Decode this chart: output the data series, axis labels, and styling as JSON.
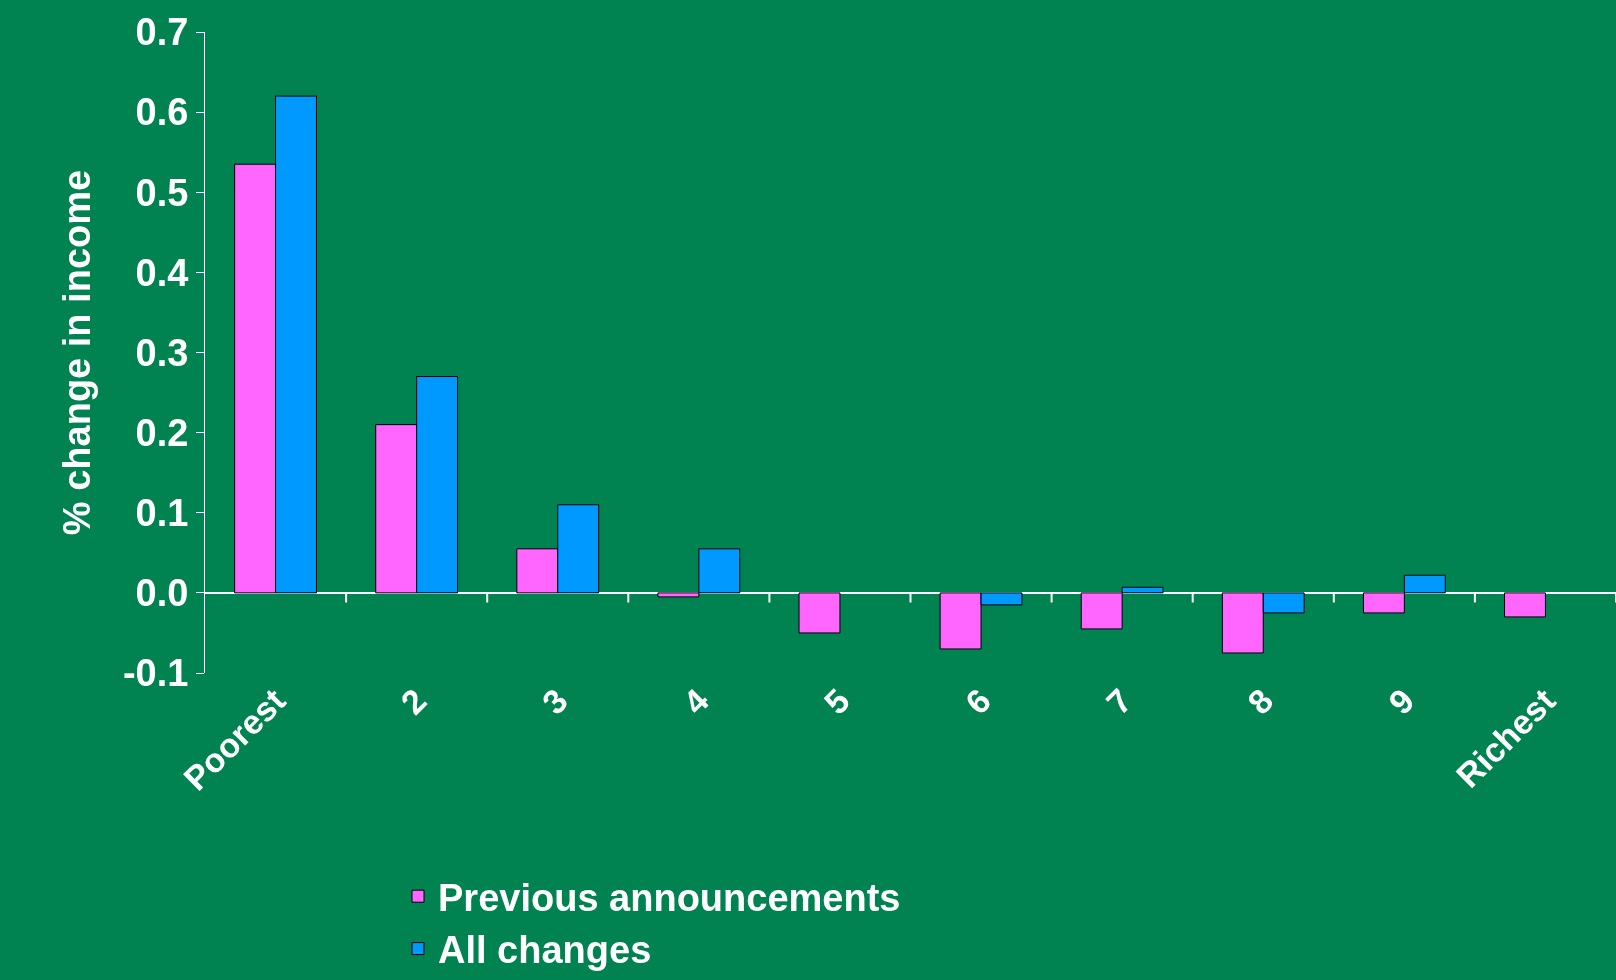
{
  "chart_data": {
    "type": "bar",
    "ylabel": "% change in income",
    "categories": [
      "Poorest",
      "2",
      "3",
      "4",
      "5",
      "6",
      "7",
      "8",
      "9",
      "Richest"
    ],
    "series": [
      {
        "name": "Previous announcements",
        "color": "#ff66ff",
        "values": [
          0.535,
          0.21,
          0.055,
          -0.005,
          -0.05,
          -0.07,
          -0.045,
          -0.075,
          -0.025,
          -0.03
        ]
      },
      {
        "name": "All changes",
        "color": "#0099ff",
        "values": [
          0.62,
          0.27,
          0.11,
          0.055,
          null,
          -0.015,
          0.007,
          -0.025,
          0.022,
          null
        ]
      }
    ],
    "ylim": [
      -0.1,
      0.7
    ],
    "yticks": [
      0.7,
      0.6,
      0.5,
      0.4,
      0.3,
      0.2,
      0.1,
      {
        "value": 0,
        "label": "0.0"
      },
      -0.1
    ],
    "legend": "bottom"
  }
}
